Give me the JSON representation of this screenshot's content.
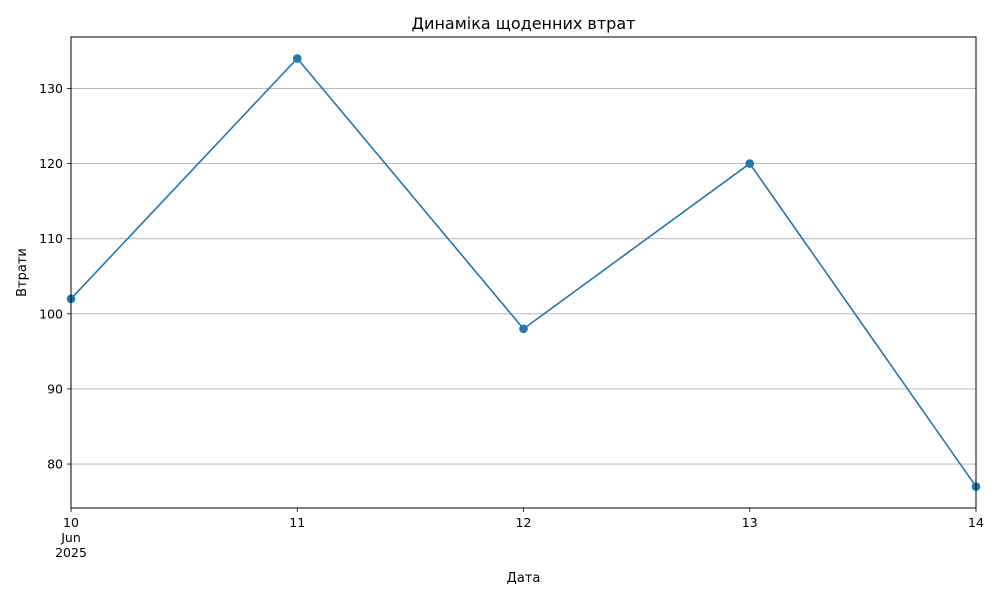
{
  "chart_data": {
    "type": "line",
    "title": "Динаміка щоденних втрат",
    "xlabel": "Дата",
    "ylabel": "Втрати",
    "x": [
      "2025-06-10",
      "2025-06-11",
      "2025-06-12",
      "2025-06-13",
      "2025-06-14"
    ],
    "x_tick_labels": [
      [
        "10",
        "Jun",
        "2025"
      ],
      [
        "11"
      ],
      [
        "12"
      ],
      [
        "13"
      ],
      [
        "14"
      ]
    ],
    "series": [
      {
        "values": [
          102,
          134,
          98,
          120,
          77
        ],
        "color": "#1f77b4",
        "marker": "circle"
      }
    ],
    "yticks": [
      80,
      90,
      100,
      110,
      120,
      130
    ],
    "ylim": [
      74.15,
      136.85
    ],
    "xlim": [
      "2025-06-10",
      "2025-06-14"
    ],
    "grid": "y-major",
    "legend": "none"
  }
}
